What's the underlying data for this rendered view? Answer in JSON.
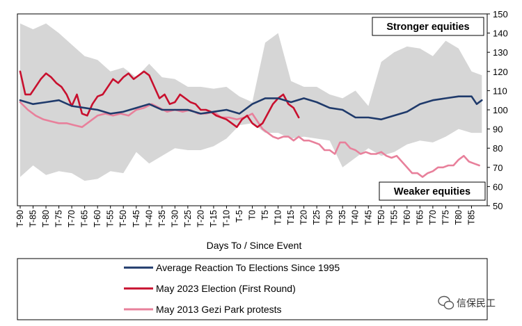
{
  "chart_data": {
    "type": "line",
    "xlabel": "Days To / Since Event",
    "ylabel": "",
    "ylim": [
      50,
      150
    ],
    "xlim": [
      -90,
      90
    ],
    "yticks": [
      50,
      60,
      70,
      80,
      90,
      100,
      110,
      120,
      130,
      140,
      150
    ],
    "xtick_labels": [
      "T-90",
      "T-85",
      "T-80",
      "T-75",
      "T-70",
      "T-65",
      "T-60",
      "T-55",
      "T-50",
      "T-45",
      "T-40",
      "T-35",
      "T-30",
      "T-25",
      "T-20",
      "T-15",
      "T-10",
      "T-5",
      "T0",
      "T5",
      "T10",
      "T15",
      "T20",
      "T25",
      "T30",
      "T35",
      "T40",
      "T45",
      "T50",
      "T55",
      "T60",
      "T65",
      "T70",
      "T75",
      "T80",
      "T85"
    ],
    "grid": false,
    "legend_position": "bottom",
    "annotations": {
      "top": "Stronger equities",
      "bottom": "Weaker equities"
    },
    "band": {
      "color": "#d6d6d6",
      "x": [
        -90,
        -85,
        -80,
        -75,
        -70,
        -65,
        -60,
        -55,
        -50,
        -45,
        -40,
        -35,
        -30,
        -25,
        -20,
        -15,
        -10,
        -5,
        0,
        5,
        10,
        15,
        20,
        25,
        30,
        35,
        40,
        45,
        50,
        55,
        60,
        65,
        70,
        75,
        80,
        85,
        89
      ],
      "upper": [
        145,
        142,
        145,
        140,
        134,
        128,
        126,
        120,
        122,
        117,
        124,
        117,
        116,
        112,
        112,
        111,
        112,
        107,
        104,
        135,
        140,
        115,
        112,
        112,
        108,
        106,
        110,
        102,
        125,
        130,
        133,
        132,
        128,
        136,
        132,
        120,
        118
      ],
      "lower": [
        65,
        71,
        66,
        68,
        67,
        63,
        64,
        68,
        67,
        78,
        72,
        76,
        80,
        79,
        79,
        81,
        85,
        92,
        93,
        88,
        88,
        85,
        86,
        85,
        84,
        70,
        75,
        80,
        76,
        78,
        82,
        84,
        83,
        86,
        90,
        88,
        88
      ]
    },
    "series": [
      {
        "name": "Average Reaction To Elections Since 1995",
        "color": "#1f3a6b",
        "x": [
          -90,
          -85,
          -80,
          -75,
          -70,
          -65,
          -60,
          -55,
          -50,
          -45,
          -40,
          -35,
          -30,
          -25,
          -20,
          -15,
          -10,
          -5,
          0,
          5,
          10,
          15,
          20,
          25,
          30,
          35,
          40,
          45,
          50,
          55,
          60,
          65,
          70,
          75,
          80,
          85,
          87,
          89
        ],
        "y": [
          105,
          103,
          104,
          105,
          102,
          101,
          100,
          98,
          99,
          101,
          103,
          100,
          100,
          100,
          98,
          99,
          100,
          98,
          103,
          106,
          106,
          104,
          106,
          104,
          101,
          100,
          96,
          96,
          95,
          97,
          99,
          103,
          105,
          106,
          107,
          107,
          103,
          105
        ]
      },
      {
        "name": "May 2023 Election  (First Round)",
        "color": "#c8102e",
        "x": [
          -90,
          -88,
          -86,
          -84,
          -82,
          -80,
          -78,
          -76,
          -74,
          -72,
          -70,
          -68,
          -66,
          -64,
          -62,
          -60,
          -58,
          -56,
          -54,
          -52,
          -50,
          -48,
          -46,
          -44,
          -42,
          -40,
          -38,
          -36,
          -34,
          -32,
          -30,
          -28,
          -26,
          -24,
          -22,
          -20,
          -18,
          -16,
          -14,
          -12,
          -10,
          -8,
          -6,
          -4,
          -2,
          0,
          2,
          4,
          6,
          8,
          10,
          12,
          14,
          16,
          18
        ],
        "y": [
          120,
          108,
          108,
          112,
          116,
          119,
          117,
          114,
          112,
          108,
          102,
          108,
          98,
          97,
          103,
          107,
          108,
          112,
          116,
          114,
          117,
          119,
          116,
          118,
          120,
          118,
          112,
          106,
          108,
          103,
          104,
          108,
          106,
          104,
          103,
          100,
          100,
          99,
          97,
          96,
          95,
          93,
          91,
          95,
          97,
          93,
          91,
          93,
          98,
          103,
          106,
          108,
          103,
          101,
          96
        ]
      },
      {
        "name": "May 2013 Gezi Park  protests",
        "color": "#e8809b",
        "x": [
          -90,
          -87,
          -84,
          -81,
          -78,
          -75,
          -72,
          -69,
          -66,
          -63,
          -60,
          -57,
          -54,
          -51,
          -48,
          -45,
          -42,
          -39,
          -36,
          -33,
          -30,
          -27,
          -24,
          -21,
          -18,
          -15,
          -12,
          -9,
          -6,
          -3,
          0,
          2,
          4,
          6,
          8,
          10,
          12,
          14,
          16,
          18,
          20,
          22,
          24,
          26,
          28,
          30,
          32,
          34,
          36,
          38,
          40,
          42,
          44,
          46,
          48,
          50,
          52,
          54,
          56,
          58,
          60,
          62,
          64,
          66,
          68,
          70,
          72,
          74,
          76,
          78,
          80,
          82,
          84,
          86,
          88
        ],
        "y": [
          104,
          100,
          97,
          95,
          94,
          93,
          93,
          92,
          91,
          94,
          97,
          98,
          97,
          98,
          97,
          100,
          101,
          103,
          101,
          99,
          100,
          99,
          100,
          98,
          98,
          99,
          96,
          96,
          95,
          96,
          98,
          94,
          90,
          88,
          86,
          85,
          86,
          86,
          84,
          86,
          84,
          84,
          83,
          82,
          79,
          79,
          77,
          83,
          83,
          80,
          79,
          77,
          78,
          77,
          77,
          78,
          76,
          75,
          76,
          73,
          70,
          67,
          67,
          65,
          67,
          68,
          70,
          70,
          71,
          71,
          74,
          76,
          73,
          72,
          71
        ]
      }
    ]
  },
  "watermark": "信保民工"
}
